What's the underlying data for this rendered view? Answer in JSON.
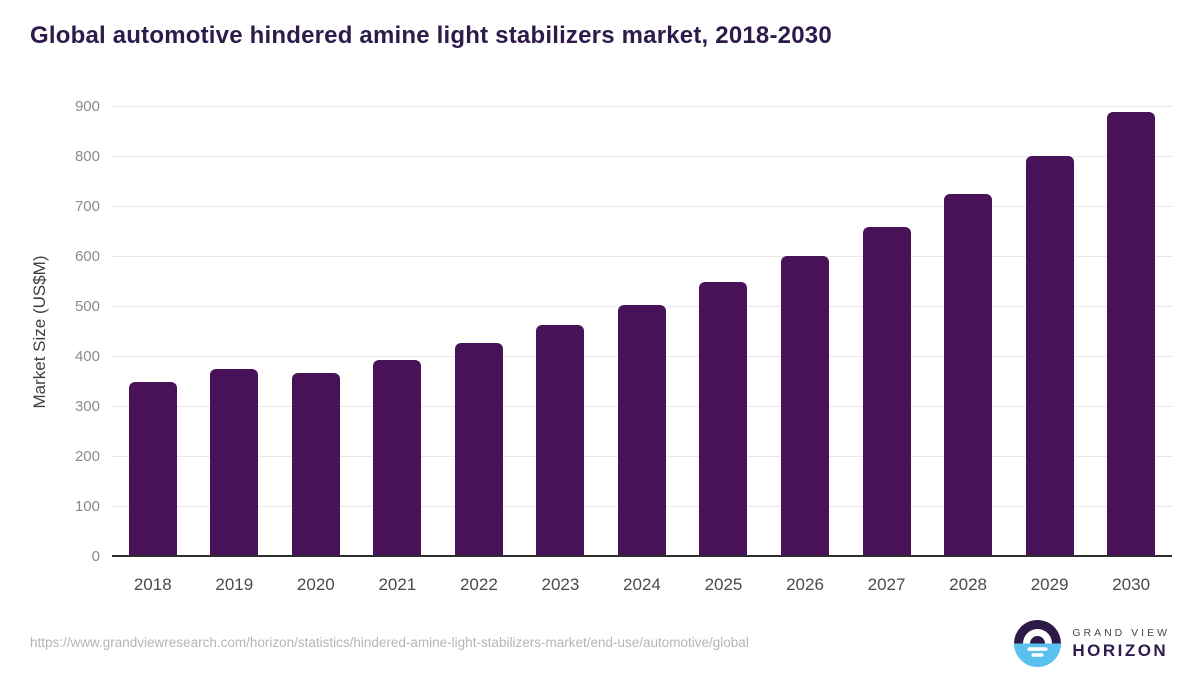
{
  "page": {
    "title": "Global automotive hindered amine light stabilizers market, 2018-2030",
    "source_url": "https://www.grandviewresearch.com/horizon/statistics/hindered-amine-light-stabilizers-market/end-use/automotive/global"
  },
  "chart_data": {
    "type": "bar",
    "title": "Global automotive hindered amine light stabilizers market, 2018-2030",
    "categories": [
      "2018",
      "2019",
      "2020",
      "2021",
      "2022",
      "2023",
      "2024",
      "2025",
      "2026",
      "2027",
      "2028",
      "2029",
      "2030"
    ],
    "values": [
      350,
      377,
      368,
      395,
      428,
      464,
      504,
      550,
      602,
      660,
      727,
      803,
      891
    ],
    "xlabel": "",
    "ylabel": "Market Size (US$M)",
    "ylim": [
      0,
      900
    ],
    "ytick_step": 100,
    "grid": true,
    "legend_position": "none",
    "bar_color": "#481158"
  },
  "colors": {
    "title_text": "#2d1b4b",
    "bar_fill": "#481158",
    "gridline": "#e8e8e8",
    "axis_line": "#2d2d2d",
    "ytick_text": "#8b8b8b",
    "xtick_text": "#4b4b4b",
    "footer_text": "#b5b5b5",
    "logo_dark": "#2e1a47",
    "logo_blue": "#5ac1ee"
  },
  "logo": {
    "line1": "GRAND VIEW",
    "line2": "HORIZON"
  }
}
